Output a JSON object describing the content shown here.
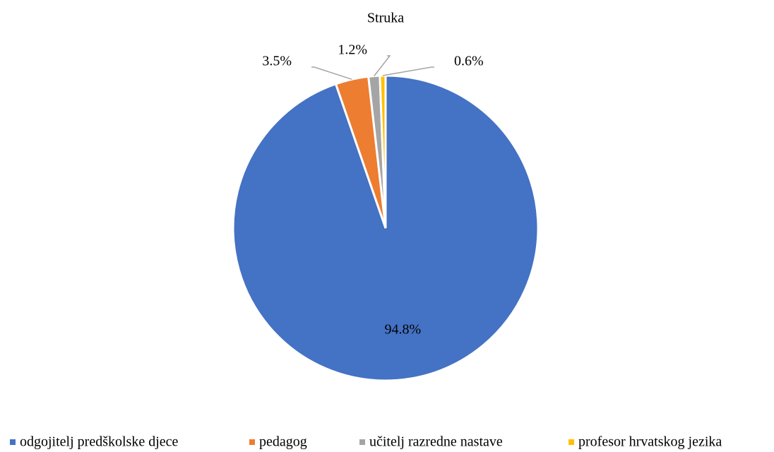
{
  "chart_data": {
    "type": "pie",
    "title": "Struka",
    "categories": [
      "odgojitelj predškolske djece",
      "pedagog",
      "učitelj razredne nastave",
      "profesor hrvatskog jezika"
    ],
    "values": [
      94.8,
      3.5,
      1.2,
      0.6
    ],
    "value_labels": [
      "94.8%",
      "3.5%",
      "1.2%",
      "0.6%"
    ],
    "colors": [
      "#4472c4",
      "#ed7d31",
      "#a5a5a5",
      "#ffc000"
    ],
    "legend": "bottom"
  }
}
